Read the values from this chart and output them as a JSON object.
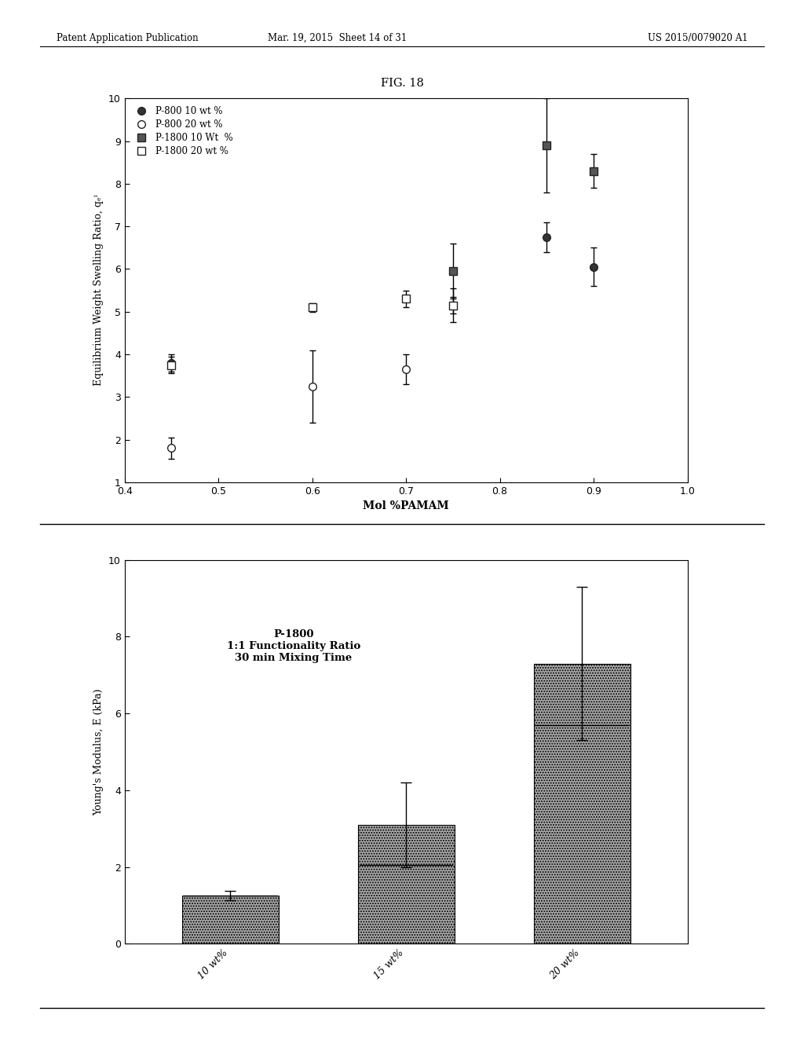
{
  "fig_title": "FIG. 18",
  "header_left": "Patent Application Publication",
  "header_center": "Mar. 19, 2015  Sheet 14 of 31",
  "header_right": "US 2015/0079020 A1",
  "scatter": {
    "xlim": [
      0.4,
      1.0
    ],
    "ylim": [
      1,
      10
    ],
    "xlabel": "Mol %PAMAM",
    "ylabel": "Equilibrium Weight Swelling Ratio, qₑⁱ",
    "xticks": [
      0.4,
      0.5,
      0.6,
      0.7,
      0.8,
      0.9,
      1.0
    ],
    "yticks": [
      1,
      2,
      3,
      4,
      5,
      6,
      7,
      8,
      9,
      10
    ],
    "series": [
      {
        "label": "P-800 10 wt %",
        "marker": "o",
        "filled": true,
        "mfc": "#333333",
        "mec": "#222222",
        "x": [
          0.45,
          0.75,
          0.85,
          0.9
        ],
        "y": [
          3.8,
          5.15,
          6.75,
          6.05
        ],
        "yerr": [
          0.2,
          0.4,
          0.35,
          0.45
        ]
      },
      {
        "label": "P-800 20 wt %",
        "marker": "o",
        "filled": false,
        "mfc": "white",
        "mec": "#222222",
        "x": [
          0.45,
          0.6,
          0.7
        ],
        "y": [
          1.8,
          3.25,
          3.65
        ],
        "yerr": [
          0.25,
          0.85,
          0.35
        ]
      },
      {
        "label": "P-1800 10 Wt  %",
        "marker": "s",
        "filled": true,
        "mfc": "#555555",
        "mec": "#222222",
        "x": [
          0.75,
          0.85,
          0.9
        ],
        "y": [
          5.95,
          8.9,
          8.3
        ],
        "yerr": [
          0.65,
          1.1,
          0.4
        ]
      },
      {
        "label": "P-1800 20 wt %",
        "marker": "s",
        "filled": false,
        "mfc": "white",
        "mec": "#222222",
        "x": [
          0.45,
          0.6,
          0.7,
          0.75
        ],
        "y": [
          3.75,
          5.1,
          5.3,
          5.15
        ],
        "yerr": [
          0.2,
          0.1,
          0.2,
          0.2
        ]
      }
    ]
  },
  "bar": {
    "categories": [
      "10 wt%",
      "15 wt%",
      "20 wt%"
    ],
    "values": [
      1.25,
      3.1,
      7.3
    ],
    "yerr": [
      0.12,
      1.1,
      2.0
    ],
    "ymean": [
      1.25,
      2.05,
      5.7
    ],
    "ylim": [
      0,
      10
    ],
    "ylabel": "Young's Modulus, E (kPa)",
    "yticks": [
      0,
      2,
      4,
      6,
      8,
      10
    ],
    "bar_color": "#aaaaaa",
    "bar_hatch": ".....",
    "annotation_line1": "P-1800",
    "annotation_line2": "1:1 Functionality Ratio",
    "annotation_line3": "30 min Mixing Time"
  }
}
